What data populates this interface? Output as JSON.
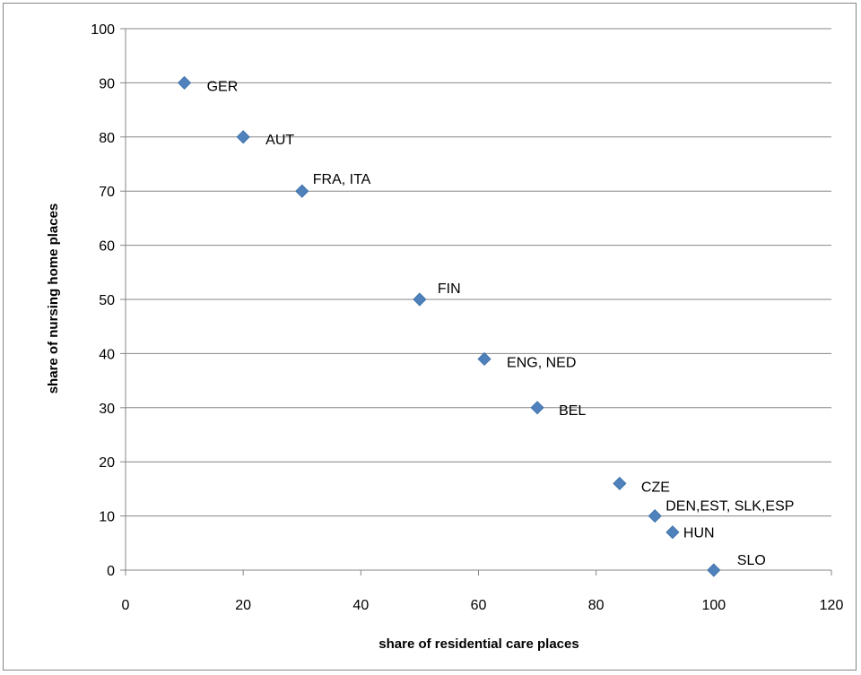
{
  "chart_data": {
    "type": "scatter",
    "title": "",
    "xlabel": "share  of residential care places",
    "ylabel": "share of nursing home places",
    "xlim": [
      0,
      120
    ],
    "ylim": [
      0,
      100
    ],
    "x_ticks": [
      0,
      20,
      40,
      60,
      80,
      100,
      120
    ],
    "y_ticks": [
      0,
      10,
      20,
      30,
      40,
      50,
      60,
      70,
      80,
      90,
      100
    ],
    "grid": "horizontal",
    "legend": "none",
    "marker": "diamond",
    "marker_color": "#4f81bd",
    "points": [
      {
        "x": 10,
        "y": 90,
        "label": "GER"
      },
      {
        "x": 20,
        "y": 80,
        "label": "AUT"
      },
      {
        "x": 30,
        "y": 70,
        "label": "FRA,  ITA"
      },
      {
        "x": 50,
        "y": 50,
        "label": "FIN"
      },
      {
        "x": 61,
        "y": 39,
        "label": "ENG,  NED"
      },
      {
        "x": 70,
        "y": 30,
        "label": "BEL"
      },
      {
        "x": 84,
        "y": 16,
        "label": "CZE"
      },
      {
        "x": 90,
        "y": 10,
        "label": "DEN,EST, SLK,ESP"
      },
      {
        "x": 93,
        "y": 7,
        "label": "HUN"
      },
      {
        "x": 100,
        "y": 0,
        "label": "SLO"
      }
    ]
  }
}
